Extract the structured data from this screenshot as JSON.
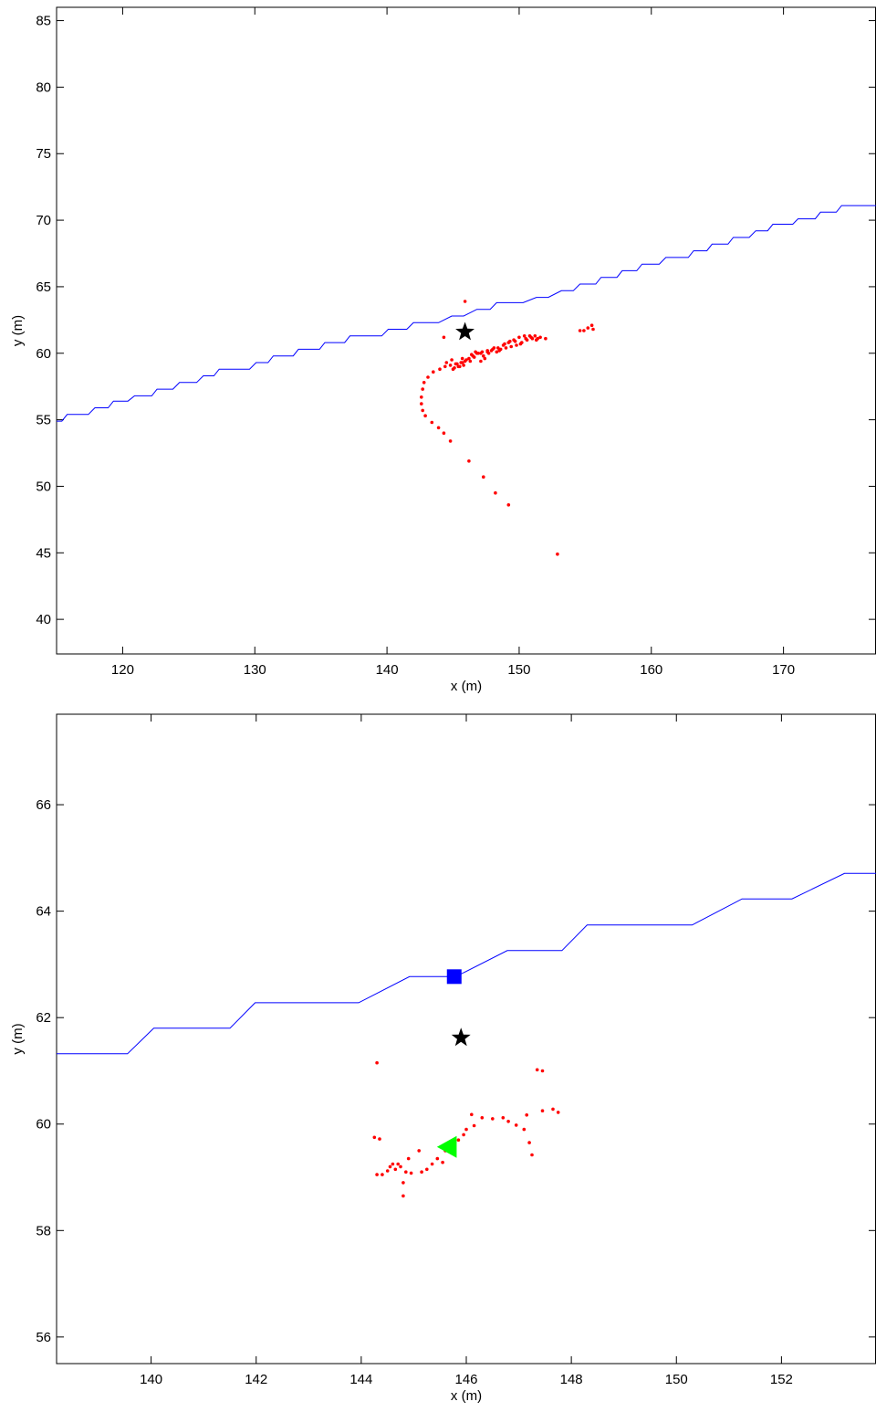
{
  "chart_data": [
    {
      "type": "line",
      "xlabel": "x (m)",
      "ylabel": "y (m)",
      "xlim": [
        115,
        177
      ],
      "ylim": [
        37.4,
        86
      ],
      "xticks": [
        120,
        130,
        140,
        150,
        160,
        170
      ],
      "yticks": [
        40,
        45,
        50,
        55,
        60,
        65,
        70,
        75,
        80,
        85
      ],
      "series": [
        {
          "kind": "staircase-line",
          "color": "#0000ff",
          "points": [
            [
              115,
              54.9
            ],
            [
              115.4,
              54.9
            ],
            [
              115.8,
              55.4
            ],
            [
              117.4,
              55.4
            ],
            [
              117.9,
              55.9
            ],
            [
              118.9,
              55.9
            ],
            [
              119.3,
              56.4
            ],
            [
              120.4,
              56.4
            ],
            [
              120.9,
              56.8
            ],
            [
              122.2,
              56.8
            ],
            [
              122.6,
              57.3
            ],
            [
              123.8,
              57.3
            ],
            [
              124.3,
              57.8
            ],
            [
              125.6,
              57.8
            ],
            [
              126.1,
              58.3
            ],
            [
              126.9,
              58.3
            ],
            [
              127.3,
              58.8
            ],
            [
              129.6,
              58.8
            ],
            [
              130.1,
              59.3
            ],
            [
              131.0,
              59.3
            ],
            [
              131.4,
              59.8
            ],
            [
              132.9,
              59.8
            ],
            [
              133.3,
              60.3
            ],
            [
              134.9,
              60.3
            ],
            [
              135.3,
              60.8
            ],
            [
              136.8,
              60.8
            ],
            [
              137.2,
              61.3
            ],
            [
              139.6,
              61.3
            ],
            [
              140.1,
              61.8
            ],
            [
              141.5,
              61.8
            ],
            [
              142.0,
              62.3
            ],
            [
              143.9,
              62.3
            ],
            [
              144.9,
              62.8
            ],
            [
              145.8,
              62.8
            ],
            [
              146.8,
              63.3
            ],
            [
              147.8,
              63.3
            ],
            [
              148.3,
              63.8
            ],
            [
              150.3,
              63.8
            ],
            [
              151.3,
              64.2
            ],
            [
              152.2,
              64.2
            ],
            [
              153.2,
              64.7
            ],
            [
              154.1,
              64.7
            ],
            [
              154.6,
              65.2
            ],
            [
              155.8,
              65.2
            ],
            [
              156.2,
              65.7
            ],
            [
              157.4,
              65.7
            ],
            [
              157.8,
              66.2
            ],
            [
              158.9,
              66.2
            ],
            [
              159.3,
              66.7
            ],
            [
              160.6,
              66.7
            ],
            [
              161.1,
              67.2
            ],
            [
              162.8,
              67.2
            ],
            [
              163.2,
              67.7
            ],
            [
              164.2,
              67.7
            ],
            [
              164.6,
              68.2
            ],
            [
              165.8,
              68.2
            ],
            [
              166.2,
              68.7
            ],
            [
              167.4,
              68.7
            ],
            [
              167.9,
              69.2
            ],
            [
              168.8,
              69.2
            ],
            [
              169.2,
              69.7
            ],
            [
              170.7,
              69.7
            ],
            [
              171.1,
              70.1
            ],
            [
              172.4,
              70.1
            ],
            [
              172.8,
              70.6
            ],
            [
              174.0,
              70.6
            ],
            [
              174.4,
              71.1
            ],
            [
              177,
              71.1
            ]
          ]
        },
        {
          "kind": "scatter",
          "color": "#ff0000",
          "points": [
            [
              152.9,
              44.9
            ],
            [
              149.2,
              48.6
            ],
            [
              148.2,
              49.5
            ],
            [
              147.3,
              50.7
            ],
            [
              146.2,
              51.9
            ],
            [
              144.8,
              53.4
            ],
            [
              144.3,
              54.0
            ],
            [
              143.9,
              54.4
            ],
            [
              143.4,
              54.8
            ],
            [
              142.9,
              55.3
            ],
            [
              142.7,
              55.7
            ],
            [
              142.6,
              56.2
            ],
            [
              142.6,
              56.7
            ],
            [
              142.7,
              57.3
            ],
            [
              142.8,
              57.8
            ],
            [
              143.1,
              58.2
            ],
            [
              143.5,
              58.6
            ],
            [
              144.0,
              58.8
            ],
            [
              144.4,
              59.0
            ],
            [
              144.8,
              59.1
            ],
            [
              145.2,
              59.2
            ],
            [
              145.6,
              59.3
            ],
            [
              145.9,
              59.4
            ],
            [
              146.2,
              59.6
            ],
            [
              146.5,
              59.8
            ],
            [
              146.8,
              60.0
            ],
            [
              147.2,
              60.1
            ],
            [
              147.6,
              60.2
            ],
            [
              148.0,
              60.3
            ],
            [
              148.4,
              60.4
            ],
            [
              148.8,
              60.6
            ],
            [
              149.2,
              60.8
            ],
            [
              149.6,
              61.0
            ],
            [
              150.0,
              61.2
            ],
            [
              150.4,
              61.3
            ],
            [
              150.8,
              61.3
            ],
            [
              151.2,
              61.3
            ],
            [
              151.6,
              61.2
            ],
            [
              152.0,
              61.1
            ],
            [
              145.0,
              58.8
            ],
            [
              145.4,
              59.0
            ],
            [
              145.8,
              59.1
            ],
            [
              146.3,
              59.4
            ],
            [
              146.6,
              59.7
            ],
            [
              146.9,
              60.0
            ],
            [
              147.3,
              59.8
            ],
            [
              147.6,
              60.1
            ],
            [
              147.9,
              60.2
            ],
            [
              148.3,
              60.1
            ],
            [
              148.6,
              60.3
            ],
            [
              149.0,
              60.4
            ],
            [
              149.4,
              60.5
            ],
            [
              149.8,
              60.6
            ],
            [
              150.2,
              60.8
            ],
            [
              150.6,
              61.0
            ],
            [
              151.0,
              61.1
            ],
            [
              151.4,
              61.1
            ],
            [
              144.5,
              59.3
            ],
            [
              144.9,
              59.5
            ],
            [
              145.1,
              58.9
            ],
            [
              145.3,
              59.2
            ],
            [
              145.5,
              59.0
            ],
            [
              145.7,
              59.3
            ],
            [
              146.0,
              59.5
            ],
            [
              146.4,
              59.9
            ],
            [
              146.7,
              60.1
            ],
            [
              147.1,
              60.0
            ],
            [
              147.4,
              59.6
            ],
            [
              147.7,
              60.0
            ],
            [
              148.1,
              60.4
            ],
            [
              148.5,
              60.2
            ],
            [
              148.9,
              60.7
            ],
            [
              149.3,
              60.9
            ],
            [
              149.7,
              60.9
            ],
            [
              150.1,
              60.7
            ],
            [
              150.5,
              61.1
            ],
            [
              150.9,
              61.2
            ],
            [
              151.3,
              61.0
            ],
            [
              147.1,
              59.4
            ],
            [
              154.6,
              61.7
            ],
            [
              154.9,
              61.7
            ],
            [
              155.2,
              61.9
            ],
            [
              155.5,
              62.1
            ],
            [
              155.6,
              61.8
            ],
            [
              145.9,
              63.9
            ],
            [
              144.3,
              61.2
            ],
            [
              145.7,
              59.6
            ]
          ]
        }
      ],
      "markers": [
        {
          "shape": "star",
          "x": 145.9,
          "y": 61.6,
          "color": "#000000"
        }
      ]
    },
    {
      "type": "line",
      "xlabel": "x (m)",
      "ylabel": "y (m)",
      "xlim": [
        138.2,
        153.8
      ],
      "ylim": [
        55.5,
        67.7
      ],
      "xticks": [
        140,
        142,
        144,
        146,
        148,
        150,
        152
      ],
      "yticks": [
        56,
        58,
        60,
        62,
        64,
        66
      ],
      "series": [
        {
          "kind": "staircase-line",
          "color": "#0000ff",
          "points": [
            [
              138.2,
              61.32
            ],
            [
              139.55,
              61.32
            ],
            [
              140.05,
              61.8
            ],
            [
              141.5,
              61.8
            ],
            [
              141.98,
              62.28
            ],
            [
              143.95,
              62.28
            ],
            [
              144.92,
              62.77
            ],
            [
              145.8,
              62.77
            ],
            [
              146.78,
              63.26
            ],
            [
              147.82,
              63.26
            ],
            [
              148.3,
              63.74
            ],
            [
              150.3,
              63.74
            ],
            [
              151.25,
              64.23
            ],
            [
              152.2,
              64.23
            ],
            [
              153.2,
              64.71
            ],
            [
              153.8,
              64.71
            ]
          ]
        },
        {
          "kind": "scatter",
          "color": "#ff0000",
          "points": [
            [
              144.3,
              61.15
            ],
            [
              147.35,
              61.02
            ],
            [
              147.45,
              61.0
            ],
            [
              147.45,
              60.25
            ],
            [
              147.65,
              60.28
            ],
            [
              147.75,
              60.22
            ],
            [
              146.1,
              60.18
            ],
            [
              146.3,
              60.12
            ],
            [
              146.5,
              60.1
            ],
            [
              146.7,
              60.12
            ],
            [
              146.8,
              60.05
            ],
            [
              146.95,
              59.98
            ],
            [
              147.15,
              60.17
            ],
            [
              147.1,
              59.9
            ],
            [
              147.2,
              59.65
            ],
            [
              147.25,
              59.42
            ],
            [
              146.15,
              59.97
            ],
            [
              146.0,
              59.9
            ],
            [
              145.95,
              59.8
            ],
            [
              145.85,
              59.7
            ],
            [
              145.7,
              59.65
            ],
            [
              145.6,
              59.5
            ],
            [
              145.45,
              59.35
            ],
            [
              145.55,
              59.28
            ],
            [
              145.35,
              59.25
            ],
            [
              145.25,
              59.15
            ],
            [
              145.1,
              59.5
            ],
            [
              144.9,
              59.35
            ],
            [
              144.75,
              59.2
            ],
            [
              144.65,
              59.15
            ],
            [
              144.55,
              59.2
            ],
            [
              144.5,
              59.12
            ],
            [
              144.4,
              59.05
            ],
            [
              144.3,
              59.05
            ],
            [
              144.85,
              59.1
            ],
            [
              144.8,
              58.9
            ],
            [
              144.8,
              58.65
            ],
            [
              144.95,
              59.08
            ],
            [
              145.15,
              59.1
            ],
            [
              144.35,
              59.72
            ],
            [
              144.6,
              59.25
            ],
            [
              144.7,
              59.25
            ],
            [
              144.25,
              59.75
            ]
          ]
        }
      ],
      "markers": [
        {
          "shape": "star",
          "x": 145.9,
          "y": 61.62,
          "color": "#000000"
        },
        {
          "shape": "square",
          "x": 145.77,
          "y": 62.77,
          "color": "#0000ff"
        },
        {
          "shape": "triangle-left",
          "x": 145.65,
          "y": 59.57,
          "color": "#00ff00"
        }
      ]
    }
  ]
}
